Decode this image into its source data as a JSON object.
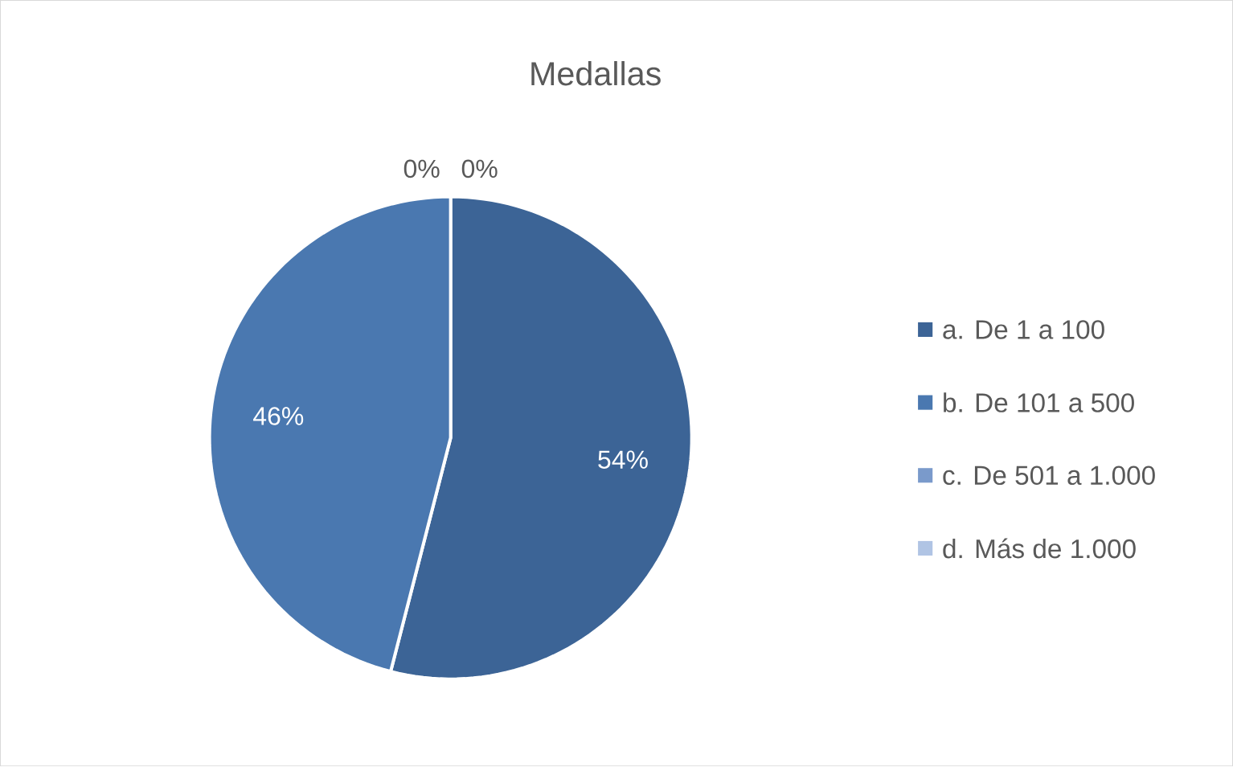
{
  "chart_data": {
    "type": "pie",
    "title": "Medallas",
    "categories": [
      "a. De 1 a 100",
      "b. De 101 a 500",
      "c. De 501 a 1.000",
      "d. Más de 1.000"
    ],
    "values": [
      54,
      46,
      0,
      0
    ],
    "value_labels": [
      "54%",
      "46%",
      "0%",
      "0%"
    ],
    "colors": [
      "#3c6496",
      "#4a78b0",
      "#7a9acb",
      "#b0c4e4"
    ],
    "legend": "right"
  }
}
